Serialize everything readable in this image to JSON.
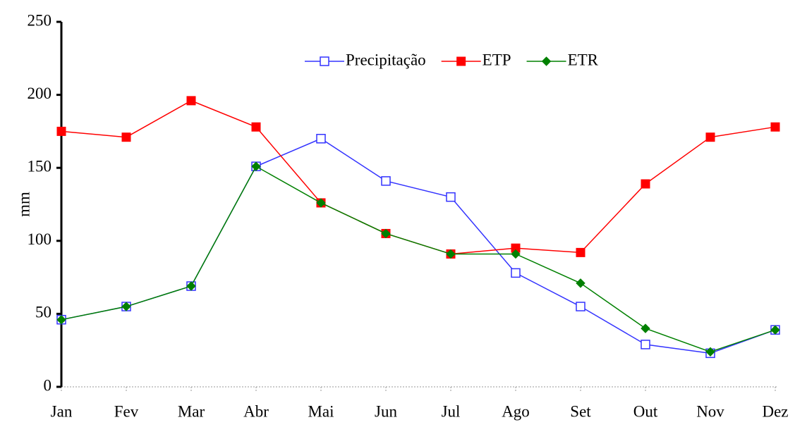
{
  "chart_data": {
    "type": "line",
    "y_label": "mm",
    "categories": [
      "Jan",
      "Fev",
      "Mar",
      "Abr",
      "Mai",
      "Jun",
      "Jul",
      "Ago",
      "Set",
      "Out",
      "Nov",
      "Dez"
    ],
    "series": [
      {
        "name": "Precipitação",
        "color": "#3333ff",
        "marker": "square-open",
        "values": [
          46,
          55,
          69,
          151,
          170,
          141,
          130,
          78,
          55,
          29,
          23,
          39
        ]
      },
      {
        "name": "ETP",
        "color": "#ff0000",
        "marker": "square",
        "values": [
          175,
          171,
          196,
          178,
          126,
          105,
          91,
          95,
          92,
          139,
          171,
          178
        ]
      },
      {
        "name": "ETR",
        "color": "#008000",
        "marker": "diamond",
        "values": [
          46,
          55,
          69,
          151,
          126,
          105,
          91,
          91,
          71,
          40,
          24,
          39
        ]
      }
    ],
    "ylim": [
      0,
      250
    ],
    "yticks": [
      0,
      50,
      100,
      150,
      200,
      250
    ],
    "legend": "top",
    "grid": false
  }
}
